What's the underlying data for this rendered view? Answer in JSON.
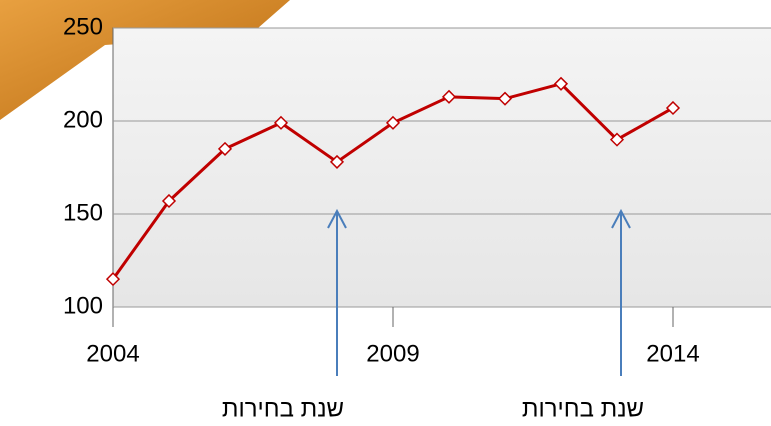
{
  "chart_data": {
    "type": "line",
    "x": [
      2004,
      2005,
      2006,
      2007,
      2008,
      2009,
      2010,
      2011,
      2012,
      2013,
      2014
    ],
    "series": [
      {
        "color": "#c00000",
        "values": [
          115,
          157,
          185,
          199,
          178,
          199,
          213,
          212,
          220,
          190,
          207
        ]
      }
    ],
    "xlim": [
      2004,
      2015.75
    ],
    "xticks": [
      2004,
      2009,
      2014
    ],
    "ylim": [
      100,
      250
    ],
    "yticks": [
      100,
      150,
      200,
      250
    ],
    "grid": true,
    "annotations": [
      "שנת בחירות",
      "שנת בחירות"
    ]
  }
}
